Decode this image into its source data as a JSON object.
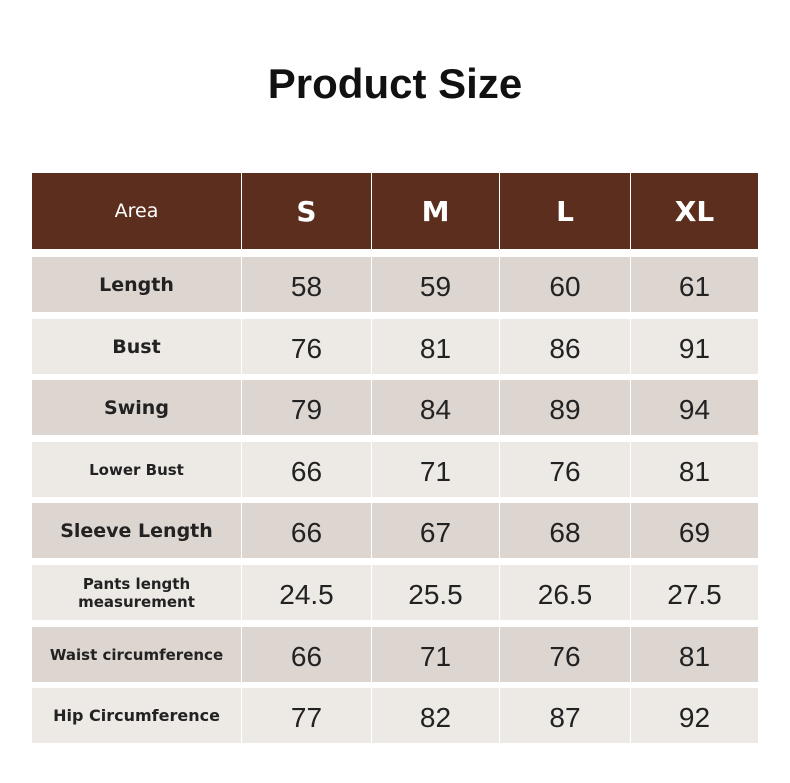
{
  "header": {
    "title": "Product Size"
  },
  "table": {
    "columns": [
      "Area",
      "S",
      "M",
      "L",
      "XL"
    ],
    "rows": [
      [
        "Length",
        58,
        59,
        60,
        61
      ],
      [
        "Bust",
        76,
        81,
        86,
        91
      ],
      [
        "Swing",
        79,
        84,
        89,
        94
      ],
      [
        "Lower Bust",
        66,
        71,
        76,
        81
      ],
      [
        "Sleeve Length",
        66,
        67,
        68,
        69
      ],
      [
        "Pants length measurement",
        24.5,
        25.5,
        26.5,
        27.5
      ],
      [
        "Waist circumference",
        66,
        71,
        76,
        81
      ],
      [
        "Hip Circumference",
        77,
        82,
        87,
        92
      ]
    ]
  }
}
